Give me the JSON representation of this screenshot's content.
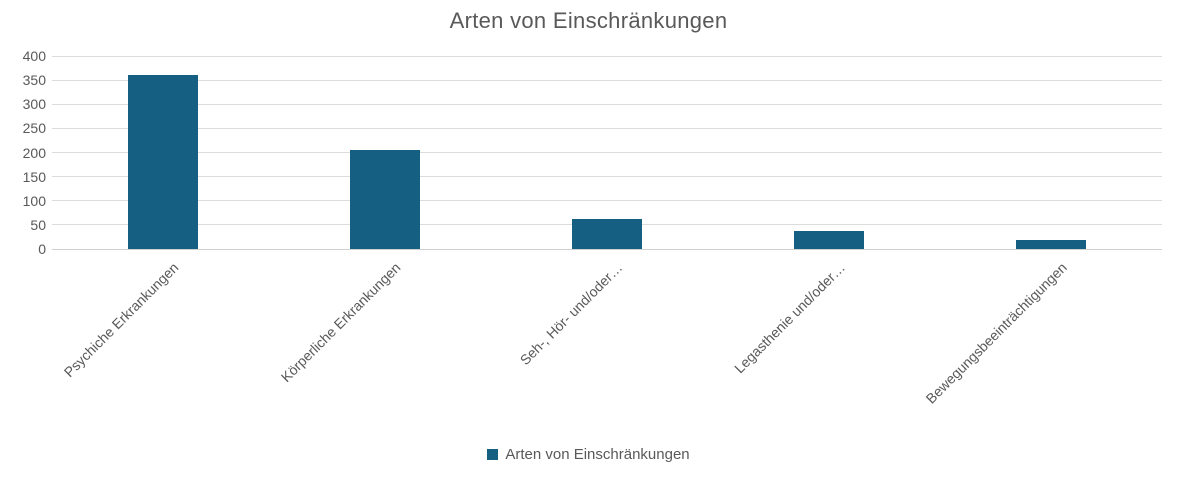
{
  "chart_data": {
    "type": "bar",
    "title": "Arten von Einschränkungen",
    "categories": [
      "Psychiche Erkrankungen",
      "Körperliche Erkrankungen",
      "Seh-, Hör- und/oder…",
      "Legasthenie und/oder…",
      "Bewegungsbeeinträchtigungen"
    ],
    "values": [
      360,
      206,
      62,
      37,
      18
    ],
    "series_name": "Arten von Einschränkungen",
    "xlabel": "",
    "ylabel": "",
    "ylim": [
      0,
      400
    ],
    "yticks": [
      0,
      50,
      100,
      150,
      200,
      250,
      300,
      350,
      400
    ],
    "grid": "horizontal",
    "legend_position": "bottom",
    "legend_label": "Arten von Einschränkungen",
    "colors": {
      "bar": "#156082",
      "text": "#595959",
      "gridline": "#dcdcdc",
      "background": "#ffffff"
    }
  }
}
